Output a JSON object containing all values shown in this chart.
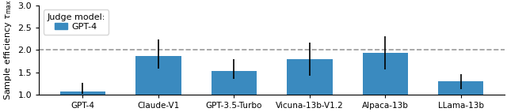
{
  "categories": [
    "GPT-4",
    "Claude-V1",
    "GPT-3.5-Turbo",
    "Vicuna-13b-V1.2",
    "Alpaca-13b",
    "LLama-13b"
  ],
  "values": [
    1.08,
    1.86,
    1.53,
    1.8,
    1.93,
    1.3
  ],
  "errors_low": [
    0.06,
    0.28,
    0.18,
    0.37,
    0.37,
    0.17
  ],
  "errors_high": [
    0.18,
    0.38,
    0.26,
    0.37,
    0.37,
    0.17
  ],
  "bar_color": "#3a8abf",
  "error_color": "black",
  "dashed_line_y": 2.0,
  "dashed_line_color": "#999999",
  "ylabel": "Sample efficiency $\\tau_{\\mathrm{max}}$",
  "ylim": [
    1.0,
    3.0
  ],
  "yticks": [
    1.0,
    1.5,
    2.0,
    2.5,
    3.0
  ],
  "legend_label": "GPT-4",
  "legend_title": "Judge model:",
  "figsize": [
    6.4,
    1.42
  ],
  "dpi": 100
}
